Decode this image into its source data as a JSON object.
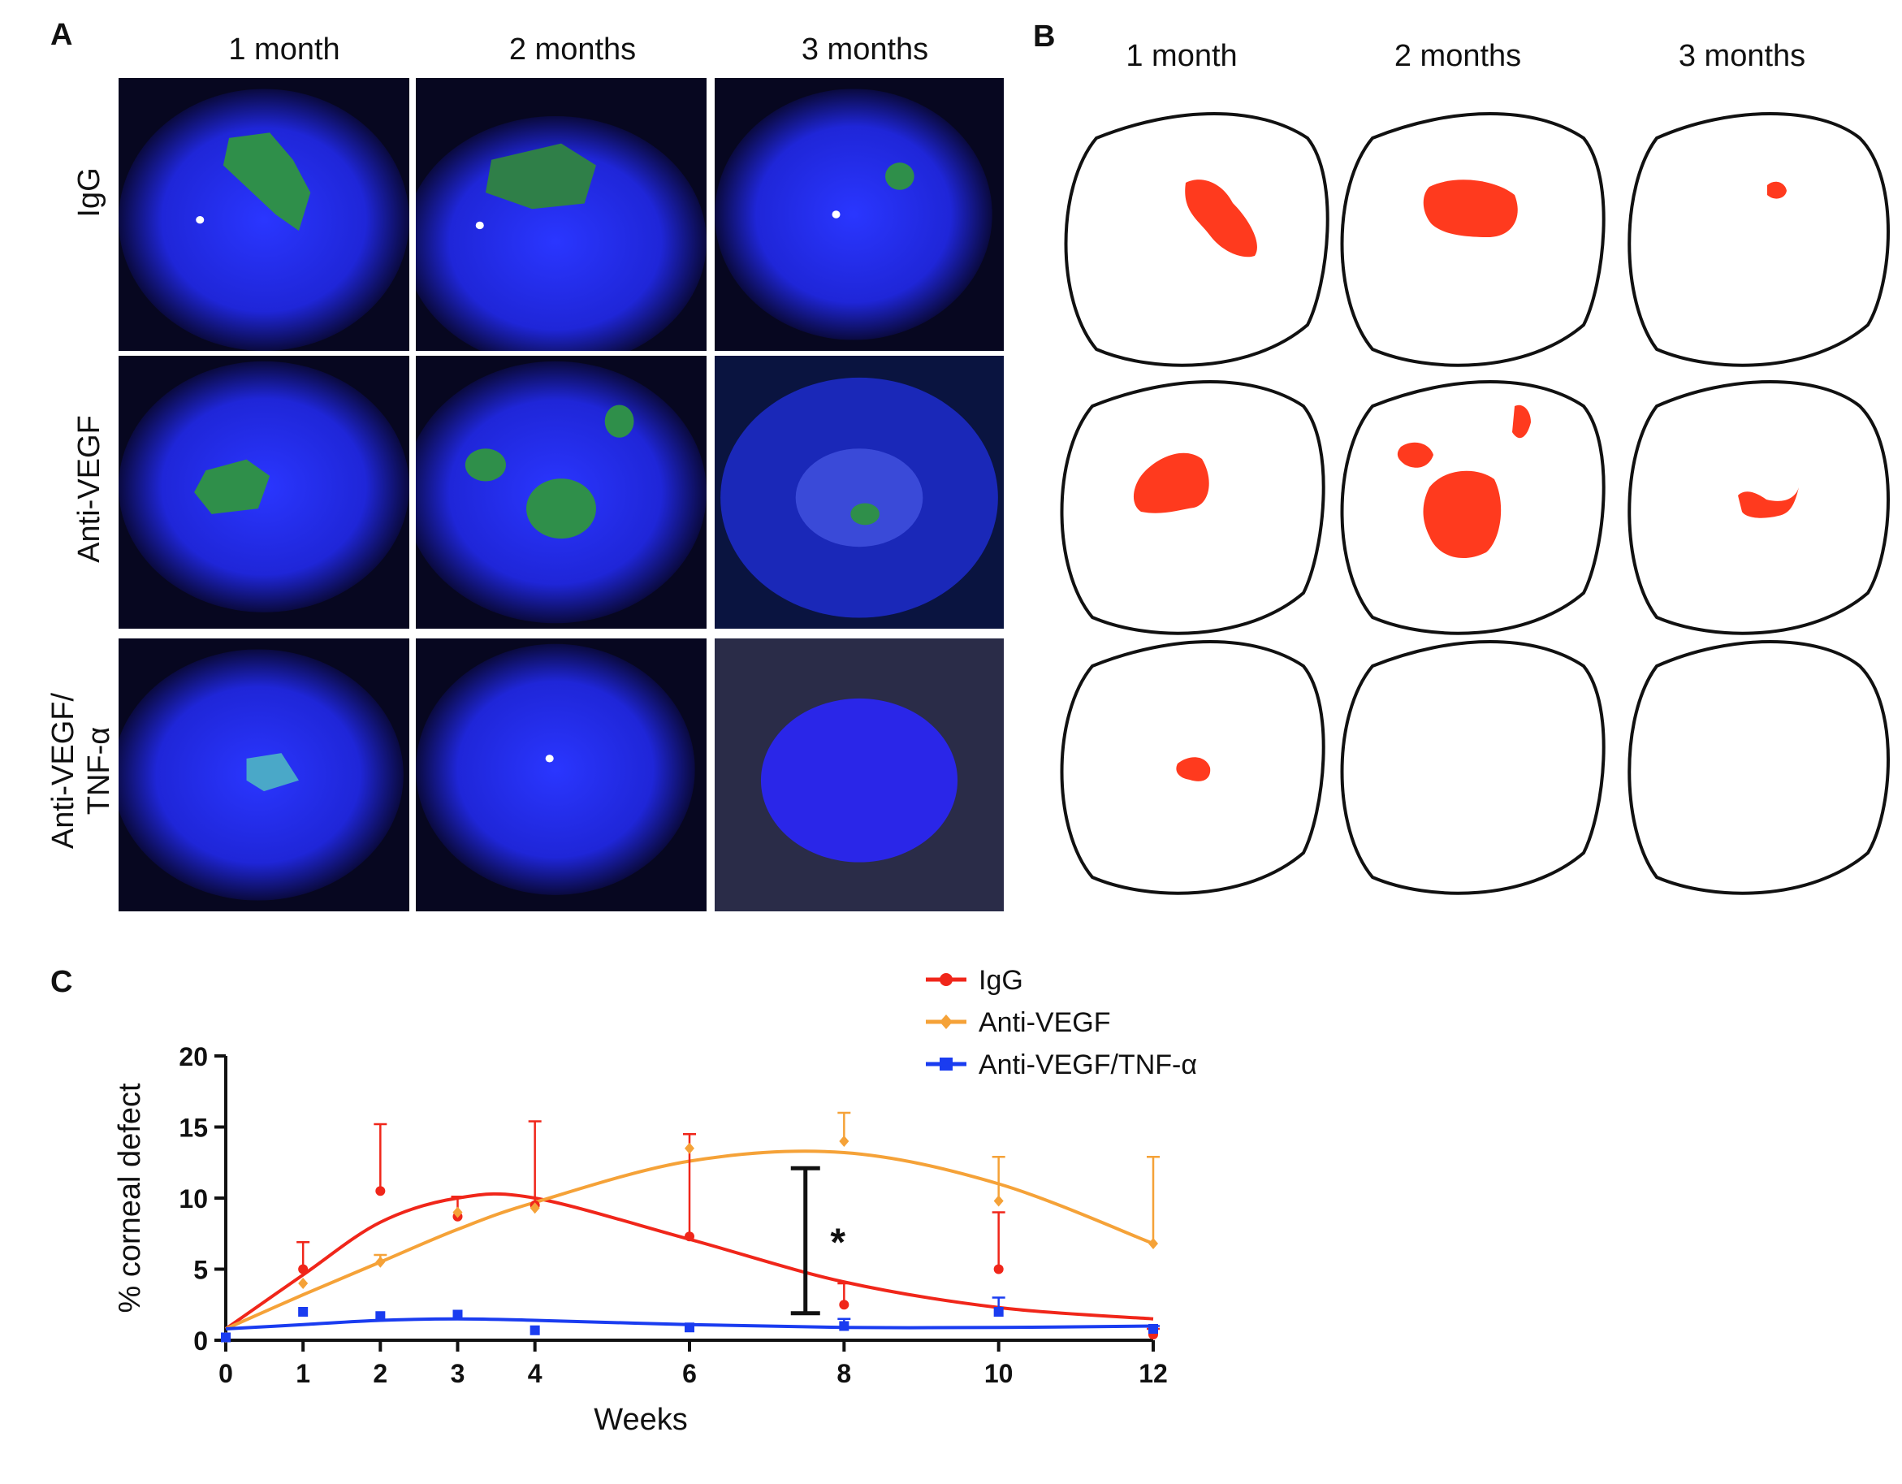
{
  "panel_a": {
    "letter": "A",
    "columns": [
      "1 month",
      "2 months",
      "3 months"
    ],
    "rows": [
      {
        "line1": "IgG",
        "line2": ""
      },
      {
        "line1": "Anti-VEGF",
        "line2": ""
      },
      {
        "line1": "Anti-VEGF/",
        "line2": "TNF-α"
      }
    ]
  },
  "panel_b": {
    "letter": "B",
    "columns": [
      "1 month",
      "2 months",
      "3 months"
    ],
    "defect_color": "#ff3a1e"
  },
  "panel_c": {
    "letter": "C",
    "significance": "*"
  },
  "colors": {
    "igg": "#f0261a",
    "anti_vegf": "#f5a238",
    "anti_vegf_tnf": "#1a3cf0",
    "photo_blue": "#1f2cf2",
    "photo_green": "#2f8f4a"
  },
  "chart_data": {
    "type": "line",
    "xlabel": "Weeks",
    "ylabel": "% corneal defect",
    "xlim": [
      0,
      12
    ],
    "ylim": [
      0,
      20
    ],
    "xticks": [
      0,
      1,
      2,
      3,
      4,
      6,
      8,
      10,
      12
    ],
    "yticks": [
      0,
      5,
      10,
      15,
      20
    ],
    "x": [
      0,
      1,
      2,
      3,
      4,
      6,
      8,
      10,
      12
    ],
    "legend": "top-right",
    "series": [
      {
        "name": "IgG",
        "marker": "circle",
        "values": [
          0.2,
          5.0,
          10.5,
          8.7,
          9.5,
          7.3,
          2.5,
          5.0,
          0.4
        ],
        "error_upper": [
          0.2,
          6.9,
          15.2,
          10.1,
          15.4,
          14.5,
          4.0,
          9.0,
          0.8
        ],
        "fit": [
          0.8,
          4.6,
          8.3,
          10.0,
          10.0,
          7.1,
          4.1,
          2.3,
          1.5
        ]
      },
      {
        "name": "Anti-VEGF",
        "marker": "diamond",
        "values": [
          0.2,
          4.0,
          5.5,
          9.0,
          9.3,
          13.5,
          14.0,
          9.8,
          6.8
        ],
        "error_upper": [
          0.2,
          4.0,
          6.0,
          9.0,
          9.3,
          13.5,
          16.0,
          12.9,
          12.9
        ],
        "fit": [
          0.8,
          3.2,
          5.5,
          7.8,
          9.7,
          12.6,
          13.2,
          11.0,
          6.8
        ]
      },
      {
        "name": "Anti-VEGF/TNF-α",
        "marker": "square",
        "values": [
          0.2,
          2.0,
          1.7,
          1.8,
          0.7,
          0.9,
          1.0,
          2.0,
          0.8
        ],
        "error_upper": [
          0.2,
          2.0,
          1.7,
          1.8,
          0.7,
          0.9,
          1.5,
          3.0,
          1.0
        ],
        "fit": [
          0.8,
          1.1,
          1.4,
          1.5,
          1.4,
          1.1,
          0.9,
          0.9,
          1.0
        ]
      }
    ],
    "annotation": {
      "text": "*",
      "x": 7.5,
      "y_low": 1.9,
      "y_high": 12.1
    }
  }
}
